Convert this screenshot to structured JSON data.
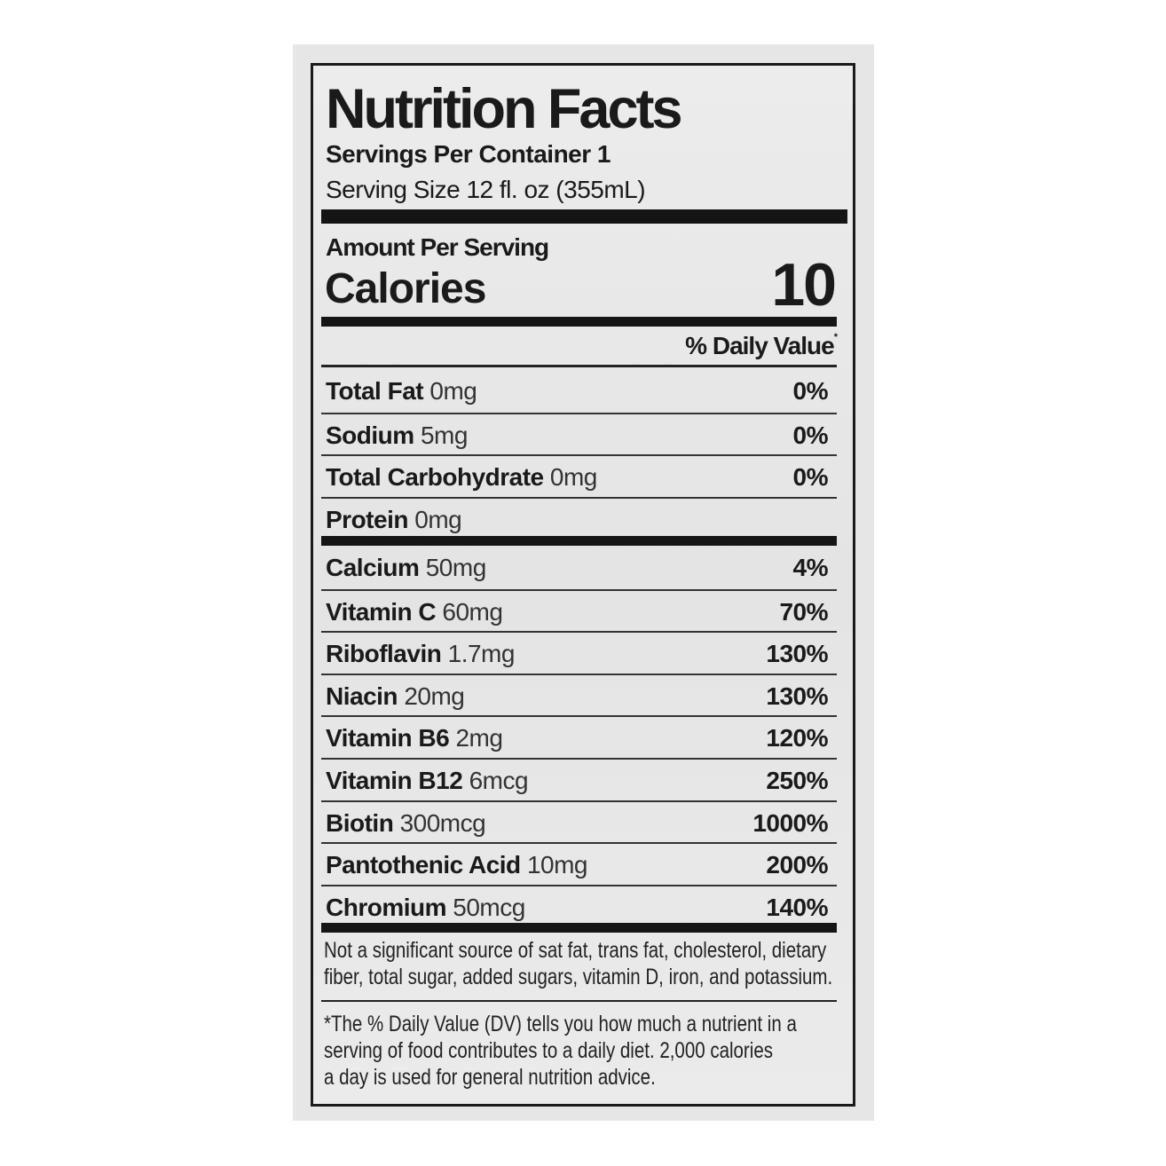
{
  "label": {
    "title": "Nutrition Facts",
    "servings_per_container": "Servings Per Container 1",
    "serving_size": "Serving Size 12 fl. oz (355mL)",
    "amount_per_serving": "Amount Per Serving",
    "calories_label": "Calories",
    "calories_value": "10",
    "daily_value_header": "% Daily Value",
    "daily_value_asterisk": "*"
  },
  "macros": [
    {
      "name": "Total Fat",
      "amount": "0mg",
      "dv": "0%"
    },
    {
      "name": "Sodium",
      "amount": "5mg",
      "dv": "0%"
    },
    {
      "name": "Total Carbohydrate",
      "amount": "0mg",
      "dv": "0%"
    },
    {
      "name": "Protein",
      "amount": "0mg",
      "dv": ""
    }
  ],
  "micros": [
    {
      "name": "Calcium",
      "amount": "50mg",
      "dv": "4%"
    },
    {
      "name": "Vitamin C",
      "amount": "60mg",
      "dv": "70%"
    },
    {
      "name": "Riboflavin",
      "amount": "1.7mg",
      "dv": "130%"
    },
    {
      "name": "Niacin",
      "amount": "20mg",
      "dv": "130%"
    },
    {
      "name": "Vitamin B6",
      "amount": "2mg",
      "dv": "120%"
    },
    {
      "name": "Vitamin B12",
      "amount": "6mcg",
      "dv": "250%"
    },
    {
      "name": "Biotin",
      "amount": "300mcg",
      "dv": "1000%"
    },
    {
      "name": "Pantothenic Acid",
      "amount": "10mg",
      "dv": "200%"
    },
    {
      "name": "Chromium",
      "amount": "50mcg",
      "dv": "140%"
    }
  ],
  "footnotes": {
    "not_significant": [
      "Not a significant source of sat fat, trans fat, cholesterol, dietary",
      "fiber, total sugar, added sugars, vitamin D, iron, and potassium."
    ],
    "daily_value_note": [
      "*The % Daily Value (DV) tells you how much a nutrient in a",
      "serving of food contributes to a daily diet. 2,000 calories",
      "a day is used for general nutrition advice."
    ]
  }
}
